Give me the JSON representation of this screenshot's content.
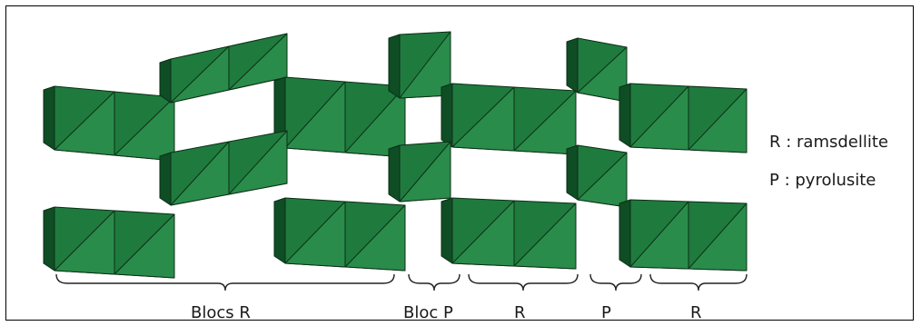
{
  "colors": {
    "face_front": "#1f7a3e",
    "face_dark": "#0f4d24",
    "face_light": "#2a8c4a",
    "edge": "#0b2f16",
    "text": "#1a1a1a"
  },
  "legend": {
    "r_line": "R : ramsdellite",
    "p_line": "P : pyrolusite"
  },
  "brace_labels": {
    "blocs_r": "Blocs R",
    "bloc_p": "Bloc P",
    "r_first": "R",
    "p": "P",
    "r_second": "R"
  }
}
